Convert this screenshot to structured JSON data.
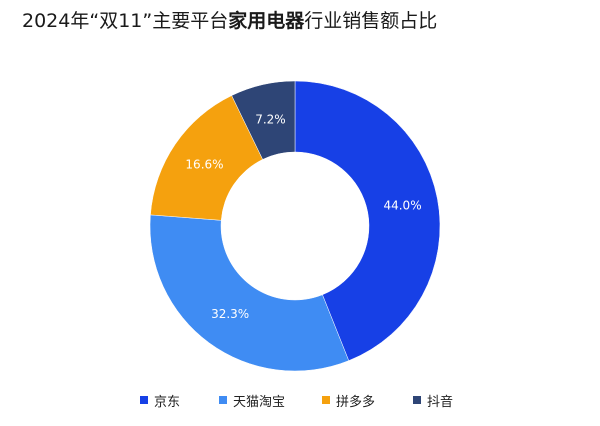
{
  "title": {
    "prefix": "2024年“双11”主要平台",
    "bold": "家用电器",
    "suffix": "行业销售额占比"
  },
  "chart_data": {
    "type": "pie",
    "variant": "donut",
    "title": "2024年“双11”主要平台家用电器行业销售额占比",
    "unit": "%",
    "categories": [
      "京东",
      "天猫淘宝",
      "拼多多",
      "抖音"
    ],
    "values": [
      44.0,
      32.3,
      16.6,
      7.2
    ],
    "labels": [
      "44.0%",
      "32.3%",
      "16.6%",
      "7.2%"
    ],
    "colors": [
      "#1740E6",
      "#3F8CF3",
      "#F5A10E",
      "#2E4576"
    ],
    "label_colors": [
      "#ffffff",
      "#ffffff",
      "#ffffff",
      "#ffffff"
    ],
    "start": "12 o'clock",
    "direction": "clockwise",
    "legend_position": "bottom"
  },
  "legend": {
    "items": [
      {
        "label": "京东",
        "color": "#1740E6"
      },
      {
        "label": "天猫淘宝",
        "color": "#3F8CF3"
      },
      {
        "label": "拼多多",
        "color": "#F5A10E"
      },
      {
        "label": "抖音",
        "color": "#2E4576"
      }
    ]
  }
}
